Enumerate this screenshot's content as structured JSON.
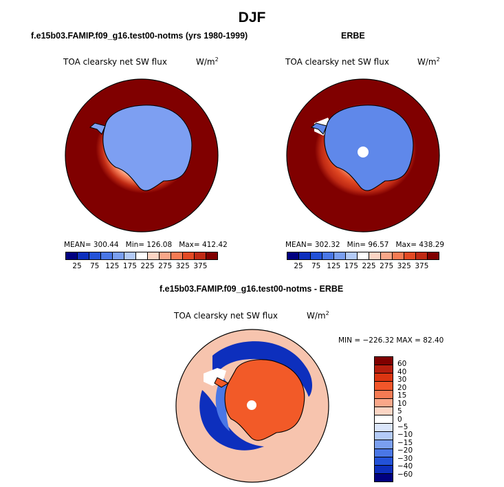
{
  "title": "DJF",
  "colors": {
    "abs_scale": [
      "#000080",
      "#0d2fbd",
      "#2352d8",
      "#4a77e6",
      "#7a9ff0",
      "#b4cbf7",
      "#ffffff",
      "#fcd5c4",
      "#f9a789",
      "#f57b54",
      "#e34a24",
      "#c02a14",
      "#800000"
    ],
    "diff_scale": [
      "#800000",
      "#b61e0e",
      "#db3511",
      "#f2562a",
      "#f57b54",
      "#f9a789",
      "#fcd5c4",
      "#ffffff",
      "#dbe6fb",
      "#b4cbf7",
      "#7a9ff0",
      "#4a77e6",
      "#2352d8",
      "#0d2fbd",
      "#000080"
    ],
    "land_model": "#7d9ff2",
    "land_obs": "#5f88ea",
    "ocean_far": "#800000",
    "diff_land": "#f25a28",
    "diff_ocean": "#f7c4ae"
  },
  "chart_data": [
    {
      "type": "heatmap",
      "title": "f.e15b03.FAMIP.f09_g16.test00-notms (yrs 1980-1999)",
      "variable": "TOA clearsky net SW flux",
      "units": "W/m",
      "units_sup": "2",
      "stats": {
        "mean_label": "MEAN=",
        "mean": "300.44",
        "min_label": "Min=",
        "min": "126.08",
        "max_label": "Max=",
        "max": "412.42"
      },
      "colorbar_ticks": [
        "25",
        "75",
        "125",
        "175",
        "225",
        "275",
        "325",
        "375"
      ]
    },
    {
      "type": "heatmap",
      "title": "ERBE",
      "variable": "TOA clearsky net SW flux",
      "units": "W/m",
      "units_sup": "2",
      "stats": {
        "mean_label": "MEAN=",
        "mean": "302.32",
        "min_label": "Min=",
        "min": "96.57",
        "max_label": "Max=",
        "max": "438.29"
      },
      "colorbar_ticks": [
        "25",
        "75",
        "125",
        "175",
        "225",
        "275",
        "325",
        "375"
      ]
    },
    {
      "type": "heatmap",
      "title": "f.e15b03.FAMIP.f09_g16.test00-notms - ERBE",
      "variable": "TOA clearsky net SW flux",
      "units": "W/m",
      "units_sup": "2",
      "stats_line": "MIN = −226.32 MAX =  82.40",
      "colorbar_ticks": [
        "60",
        "40",
        "30",
        "20",
        "15",
        "10",
        "5",
        "0",
        "−5",
        "−10",
        "−15",
        "−20",
        "−30",
        "−40",
        "−60"
      ]
    }
  ]
}
